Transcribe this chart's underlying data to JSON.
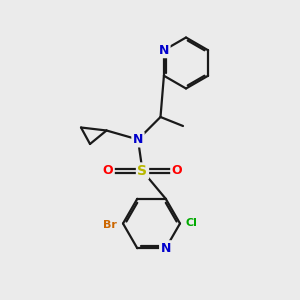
{
  "background_color": "#ebebeb",
  "bond_color": "#1a1a1a",
  "bond_width": 1.6,
  "figsize": [
    3.0,
    3.0
  ],
  "dpi": 100,
  "xlim": [
    0,
    10
  ],
  "ylim": [
    0,
    10
  ]
}
